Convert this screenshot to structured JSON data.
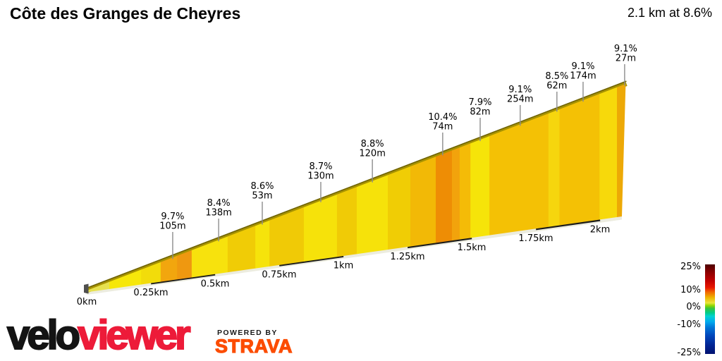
{
  "header": {
    "title": "Côte des Granges de Cheyres",
    "summary": "2.1 km at 8.6%"
  },
  "chart_data": {
    "type": "area",
    "title": "Côte des Granges de Cheyres",
    "total_distance_km": 2.1,
    "average_gradient_pct": 8.6,
    "x_range_km": [
      0,
      2.1
    ],
    "x_ticks": [
      {
        "km": 0,
        "label": "0km"
      },
      {
        "km": 0.25,
        "label": "0.25km"
      },
      {
        "km": 0.5,
        "label": "0.5km"
      },
      {
        "km": 0.75,
        "label": "0.75km"
      },
      {
        "km": 1,
        "label": "1km"
      },
      {
        "km": 1.25,
        "label": "1.25km"
      },
      {
        "km": 1.5,
        "label": "1.5km"
      },
      {
        "km": 1.75,
        "label": "1.75km"
      },
      {
        "km": 2,
        "label": "2km"
      }
    ],
    "labeled_segments": [
      {
        "gradient": "9.7%",
        "length": "105m",
        "at_km": 0.335
      },
      {
        "gradient": "8.4%",
        "length": "138m",
        "at_km": 0.514
      },
      {
        "gradient": "8.6%",
        "length": "53m",
        "at_km": 0.684
      },
      {
        "gradient": "8.7%",
        "length": "130m",
        "at_km": 0.912
      },
      {
        "gradient": "8.8%",
        "length": "120m",
        "at_km": 1.113
      },
      {
        "gradient": "10.4%",
        "length": "74m",
        "at_km": 1.387
      },
      {
        "gradient": "7.9%",
        "length": "82m",
        "at_km": 1.533
      },
      {
        "gradient": "9.1%",
        "length": "254m",
        "at_km": 1.689
      },
      {
        "gradient": "8.5%",
        "length": "62m",
        "at_km": 1.832
      },
      {
        "gradient": "9.1%",
        "length": "174m",
        "at_km": 1.934
      },
      {
        "gradient": "9.1%",
        "length": "27m",
        "at_km": 2.1
      }
    ],
    "gradient_bands": [
      {
        "from_km": 0.0,
        "to_km": 0.088,
        "color": "#e7e14e"
      },
      {
        "from_km": 0.088,
        "to_km": 0.212,
        "color": "#f6e70a"
      },
      {
        "from_km": 0.212,
        "to_km": 0.288,
        "color": "#f2dc0b"
      },
      {
        "from_km": 0.288,
        "to_km": 0.352,
        "color": "#f2a60e"
      },
      {
        "from_km": 0.352,
        "to_km": 0.409,
        "color": "#ef9810"
      },
      {
        "from_km": 0.409,
        "to_km": 0.549,
        "color": "#f7e20d"
      },
      {
        "from_km": 0.549,
        "to_km": 0.657,
        "color": "#f0cc06"
      },
      {
        "from_km": 0.657,
        "to_km": 0.712,
        "color": "#f6e30b"
      },
      {
        "from_km": 0.712,
        "to_km": 0.846,
        "color": "#f0ca06"
      },
      {
        "from_km": 0.846,
        "to_km": 0.975,
        "color": "#f6e20a"
      },
      {
        "from_km": 0.975,
        "to_km": 1.052,
        "color": "#f0cb06"
      },
      {
        "from_km": 1.052,
        "to_km": 1.173,
        "color": "#f6e20a"
      },
      {
        "from_km": 1.173,
        "to_km": 1.261,
        "color": "#f0cd05"
      },
      {
        "from_km": 1.261,
        "to_km": 1.36,
        "color": "#f2b906"
      },
      {
        "from_km": 1.36,
        "to_km": 1.423,
        "color": "#ee8d05"
      },
      {
        "from_km": 1.423,
        "to_km": 1.453,
        "color": "#f2a30c"
      },
      {
        "from_km": 1.453,
        "to_km": 1.495,
        "color": "#f4bb07"
      },
      {
        "from_km": 1.495,
        "to_km": 1.569,
        "color": "#f6e409"
      },
      {
        "from_km": 1.569,
        "to_km": 1.799,
        "color": "#f4c105"
      },
      {
        "from_km": 1.799,
        "to_km": 1.842,
        "color": "#f6d60e"
      },
      {
        "from_km": 1.842,
        "to_km": 1.998,
        "color": "#f4c105"
      },
      {
        "from_km": 1.998,
        "to_km": 2.066,
        "color": "#f7d90b"
      },
      {
        "from_km": 2.066,
        "to_km": 2.1,
        "color": "#eda906"
      }
    ],
    "road_color": "#a89300",
    "road_edge_color": "#6e6200",
    "pointer_line_color": "#8c8c8c",
    "baseline_color": "#ececе6",
    "baseline_dash_color": "#1b1b1b",
    "legend": {
      "position": "bottom-right",
      "ticks": [
        {
          "label": "25%",
          "pos": 0.04
        },
        {
          "label": "10%",
          "pos": 0.3
        },
        {
          "label": "0%",
          "pos": 0.49
        },
        {
          "label": "-10%",
          "pos": 0.685
        },
        {
          "label": "-25%",
          "pos": 1.0
        }
      ],
      "colorbar_stops": [
        {
          "color": "#4d0000",
          "pos": 0
        },
        {
          "color": "#870000",
          "pos": 0.08
        },
        {
          "color": "#c00000",
          "pos": 0.18
        },
        {
          "color": "#e81800",
          "pos": 0.26
        },
        {
          "color": "#f06800",
          "pos": 0.31
        },
        {
          "color": "#eeb400",
          "pos": 0.37
        },
        {
          "color": "#e8e43c",
          "pos": 0.43
        },
        {
          "color": "#90d800",
          "pos": 0.46
        },
        {
          "color": "#3cc43c",
          "pos": 0.49
        },
        {
          "color": "#00cc88",
          "pos": 0.54
        },
        {
          "color": "#00d2d2",
          "pos": 0.58
        },
        {
          "color": "#00aaee",
          "pos": 0.64
        },
        {
          "color": "#0078d8",
          "pos": 0.7
        },
        {
          "color": "#0048bc",
          "pos": 0.79
        },
        {
          "color": "#002494",
          "pos": 0.9
        },
        {
          "color": "#001270",
          "pos": 1
        }
      ]
    }
  },
  "footer": {
    "logo_velo": "velo",
    "logo_viewer": "viewer",
    "powered_by": "POWERED BY",
    "strava": "STRAVA",
    "velo_color": "#141414",
    "viewer_color": "#ed1b39",
    "strava_color": "#fc4c02"
  }
}
